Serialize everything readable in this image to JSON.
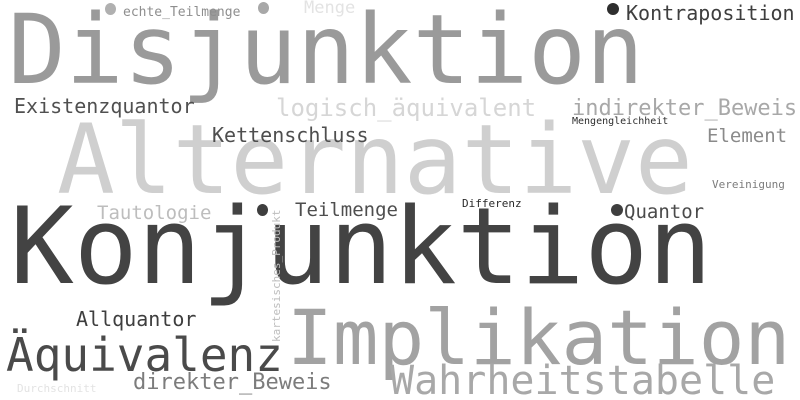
{
  "words": [
    {
      "text": "Disjunktion",
      "color": "#9a9a9a"
    },
    {
      "text": "Alternative",
      "color": "#cfcfcf"
    },
    {
      "text": "Konjunktion",
      "color": "#434343"
    },
    {
      "text": "Implikation",
      "color": "#a2a2a2"
    },
    {
      "text": "Äquivalenz",
      "color": "#4a4a4a"
    },
    {
      "text": "Wahrheitstabelle",
      "color": "#a8a8a8"
    },
    {
      "text": "logisch_äquivalent",
      "color": "#d6d6d6"
    },
    {
      "text": "indirekter_Beweis",
      "color": "#a8a8a8"
    },
    {
      "text": "Existenzquantor",
      "color": "#505050"
    },
    {
      "text": "Kettenschluss",
      "color": "#4e4e4e"
    },
    {
      "text": "Kontraposition",
      "color": "#3e3e3e"
    },
    {
      "text": "Element",
      "color": "#8a8a8a"
    },
    {
      "text": "Tautologie",
      "color": "#bdbdbd"
    },
    {
      "text": "Teilmenge",
      "color": "#4e4e4e"
    },
    {
      "text": "Quantor",
      "color": "#4a4a4a"
    },
    {
      "text": "Allquantor",
      "color": "#3e3e3e"
    },
    {
      "text": "direkter_Beweis",
      "color": "#7c7c7c"
    },
    {
      "text": "Menge",
      "color": "#e3e3e3"
    },
    {
      "text": "echte_Teilmenge",
      "color": "#8e8e8e"
    },
    {
      "text": "Mengengleichheit",
      "color": "#2e2e2e"
    },
    {
      "text": "Vereinigung",
      "color": "#7c7c7c"
    },
    {
      "text": "Differenz",
      "color": "#2a2a2a"
    },
    {
      "text": "kartesisches_Produkt",
      "color": "#bdbdbd"
    },
    {
      "text": "Durchschnitt",
      "color": "#e3e3e3"
    }
  ],
  "dots": [
    {
      "color": "#b0b0b0"
    },
    {
      "color": "#a8a8a8"
    },
    {
      "color": "#2e2e2e"
    },
    {
      "color": "#3e3e3e"
    },
    {
      "color": "#3e3e3e"
    }
  ]
}
